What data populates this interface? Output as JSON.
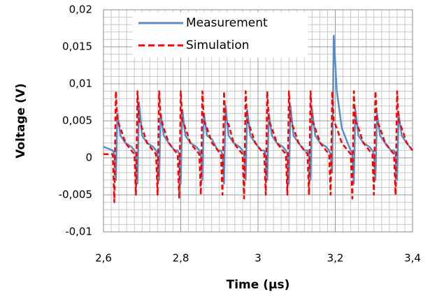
{
  "chart_data": {
    "type": "line",
    "x_label": "Time (µs)",
    "y_label": "Voltage (V)",
    "x": [
      2.6,
      2.624,
      2.628,
      2.632,
      2.636,
      2.644,
      2.657,
      2.672,
      2.68,
      2.684,
      2.688,
      2.692,
      2.7,
      2.713,
      2.728,
      2.736,
      2.74,
      2.744,
      2.748,
      2.756,
      2.769,
      2.784,
      2.792,
      2.796,
      2.8,
      2.804,
      2.812,
      2.825,
      2.84,
      2.848,
      2.852,
      2.856,
      2.86,
      2.868,
      2.881,
      2.896,
      2.904,
      2.908,
      2.912,
      2.916,
      2.924,
      2.937,
      2.952,
      2.96,
      2.964,
      2.968,
      2.972,
      2.98,
      2.993,
      3.008,
      3.016,
      3.02,
      3.024,
      3.028,
      3.036,
      3.049,
      3.064,
      3.072,
      3.076,
      3.08,
      3.084,
      3.092,
      3.105,
      3.12,
      3.128,
      3.132,
      3.136,
      3.14,
      3.148,
      3.161,
      3.176,
      3.184,
      3.188,
      3.192,
      3.196,
      3.204,
      3.217,
      3.232,
      3.24,
      3.244,
      3.248,
      3.252,
      3.26,
      3.273,
      3.288,
      3.296,
      3.3,
      3.304,
      3.308,
      3.316,
      3.329,
      3.344,
      3.352,
      3.356,
      3.36,
      3.364,
      3.372,
      3.385,
      3.4
    ],
    "series": [
      {
        "name": "Measurement",
        "color": "#5b8bc8",
        "dash": false,
        "values": [
          0.0015,
          0.001,
          0.0005,
          -0.003,
          0.006,
          0.003,
          0.002,
          0.0015,
          0.001,
          0.0005,
          -0.0035,
          0.0075,
          0.003,
          0.002,
          0.0015,
          0.001,
          0.0005,
          -0.003,
          0.006,
          0.003,
          0.002,
          0.001,
          0.001,
          0.0005,
          -0.0035,
          0.0065,
          0.003,
          0.002,
          0.0015,
          0.001,
          0.0005,
          -0.003,
          0.006,
          0.003,
          0.0025,
          0.001,
          0.001,
          0.0005,
          -0.0035,
          0.007,
          0.003,
          0.002,
          0.0015,
          0.001,
          0.0005,
          -0.003,
          0.0065,
          0.003,
          0.002,
          0.001,
          0.001,
          0.0005,
          -0.003,
          0.006,
          0.003,
          0.002,
          0.0015,
          0.001,
          0.0005,
          -0.0035,
          0.007,
          0.003,
          0.002,
          0.001,
          0.001,
          0.0005,
          -0.003,
          0.0065,
          0.003,
          0.002,
          0.0015,
          0.001,
          0.0005,
          -0.002,
          0.0165,
          0.009,
          0.004,
          0.002,
          0.001,
          0.0005,
          -0.0035,
          0.0065,
          0.003,
          0.002,
          0.0015,
          0.001,
          0.0005,
          -0.003,
          0.006,
          0.003,
          0.002,
          0.001,
          0.001,
          0.0005,
          -0.003,
          0.006,
          0.003,
          0.002,
          0.001
        ]
      },
      {
        "name": "Simulation",
        "color": "#ff0000",
        "dash": true,
        "values": [
          0.0005,
          0.0005,
          -0.006,
          0.009,
          0.005,
          0.004,
          0.002,
          0.001,
          0.0005,
          -0.005,
          0.009,
          0.005,
          0.004,
          0.002,
          0.001,
          0.0005,
          -0.005,
          0.009,
          0.0055,
          0.004,
          0.002,
          0.001,
          0.0005,
          -0.0055,
          0.009,
          0.005,
          0.004,
          0.002,
          0.001,
          0.0005,
          -0.005,
          0.009,
          0.005,
          0.004,
          0.002,
          0.001,
          0.0005,
          -0.005,
          0.009,
          0.005,
          0.0045,
          0.002,
          0.001,
          0.0005,
          -0.0055,
          0.009,
          0.005,
          0.004,
          0.002,
          0.001,
          0.0005,
          -0.005,
          0.009,
          0.005,
          0.004,
          0.002,
          0.001,
          0.0005,
          -0.005,
          0.009,
          0.005,
          0.004,
          0.002,
          0.001,
          0.0005,
          -0.005,
          0.009,
          0.005,
          0.004,
          0.002,
          0.001,
          0.0005,
          -0.005,
          0.009,
          0.005,
          0.004,
          0.002,
          0.001,
          0.0005,
          -0.0055,
          0.009,
          0.005,
          0.004,
          0.002,
          0.001,
          0.0005,
          -0.005,
          0.009,
          0.005,
          0.004,
          0.002,
          0.001,
          0.0005,
          -0.005,
          0.009,
          0.005,
          0.004,
          0.002,
          0.001
        ]
      }
    ],
    "xlim": [
      2.6,
      3.4
    ],
    "xticks": [
      {
        "value": 2.6,
        "label": "2,6"
      },
      {
        "value": 2.8,
        "label": "2,8"
      },
      3,
      {
        "value": 3.2,
        "label": "3,2"
      },
      {
        "value": 3.4,
        "label": "3,4"
      }
    ],
    "ylim": [
      -0.01,
      0.02
    ],
    "yticks": [
      {
        "value": -0.01,
        "label": "-0,01"
      },
      {
        "value": -0.005,
        "label": "-0,005"
      },
      0,
      {
        "value": 0.005,
        "label": "0,005"
      },
      {
        "value": 0.01,
        "label": "0,01"
      },
      {
        "value": 0.015,
        "label": "0,015"
      },
      {
        "value": 0.02,
        "label": "0,02"
      }
    ],
    "grid": true,
    "minor_grid": true,
    "legend": "upper left"
  }
}
